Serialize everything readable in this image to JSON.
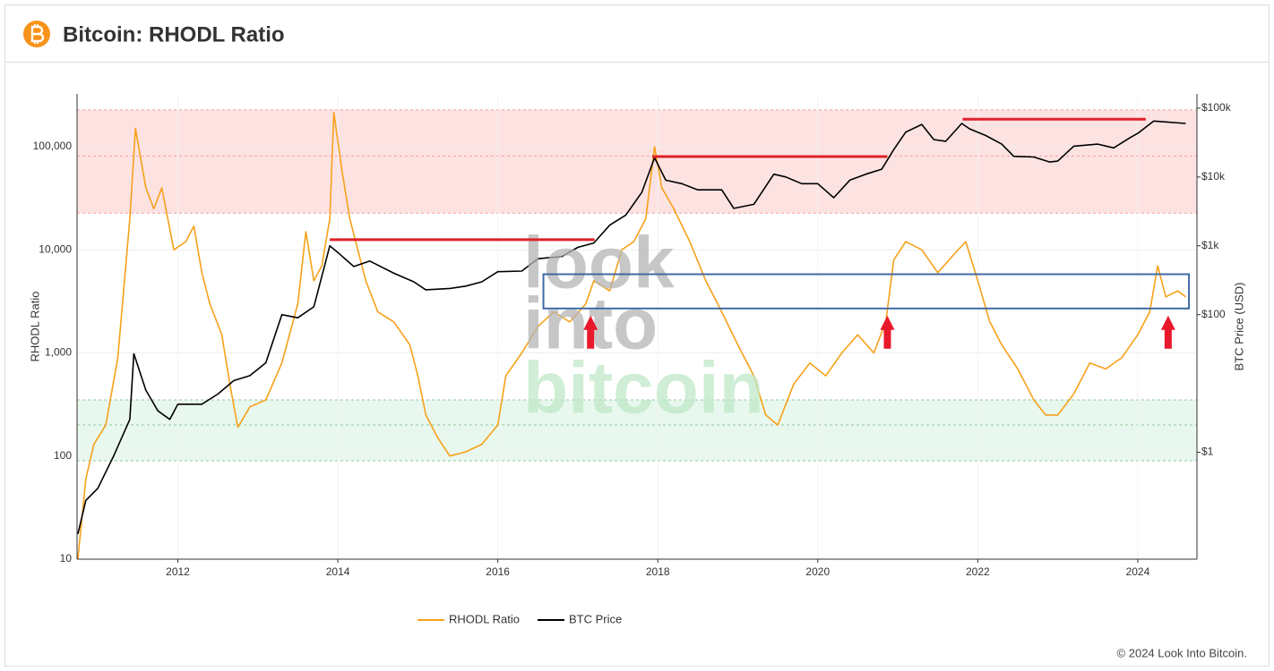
{
  "header": {
    "title": "Bitcoin: RHODL Ratio"
  },
  "chart_data": {
    "type": "line",
    "ylabel": "RHODL Ratio",
    "y2label": "BTC Price (USD)",
    "xlim": [
      2010.74,
      2024.74
    ],
    "xticks": [
      2012,
      2014,
      2016,
      2018,
      2020,
      2022,
      2024
    ],
    "ylim": [
      10,
      325000
    ],
    "log_y": true,
    "yticks": [
      10,
      100,
      {
        "value": 1000,
        "label": "1,000"
      },
      {
        "value": 10000,
        "label": "10,000"
      },
      {
        "value": 100000,
        "label": "100,000"
      }
    ],
    "y2lim": [
      0.028,
      161000
    ],
    "log_y2": true,
    "y2ticks": [
      {
        "value": 1,
        "label": "$1"
      },
      {
        "value": 100,
        "label": "$100"
      },
      {
        "value": 1000,
        "label": "$1k"
      },
      {
        "value": 10000,
        "label": "$10k"
      },
      {
        "value": 100000,
        "label": "$100k"
      }
    ],
    "grid": true,
    "legend": "bottom",
    "bands": [
      {
        "range": [
          22700,
          228000
        ],
        "line": 81000,
        "color": "#fde2e2",
        "line_color": "#f0a0a0"
      },
      {
        "range": [
          90,
          350
        ],
        "line": 200,
        "color": "#e8f8ee",
        "line_color": "#8fc79f"
      }
    ],
    "series": [
      {
        "name": "RHODL Ratio",
        "color": "#f7a11a",
        "x": [
          2010.75,
          2010.85,
          2010.95,
          2011.1,
          2011.25,
          2011.4,
          2011.47,
          2011.6,
          2011.7,
          2011.8,
          2011.95,
          2012.1,
          2012.2,
          2012.3,
          2012.4,
          2012.55,
          2012.65,
          2012.75,
          2012.9,
          2013.1,
          2013.3,
          2013.5,
          2013.6,
          2013.7,
          2013.8,
          2013.9,
          2013.95,
          2014.05,
          2014.15,
          2014.25,
          2014.35,
          2014.5,
          2014.7,
          2014.9,
          2015.0,
          2015.1,
          2015.25,
          2015.4,
          2015.6,
          2015.8,
          2016.0,
          2016.1,
          2016.3,
          2016.5,
          2016.7,
          2016.9,
          2017.1,
          2017.2,
          2017.4,
          2017.55,
          2017.7,
          2017.85,
          2017.96,
          2018.05,
          2018.2,
          2018.4,
          2018.6,
          2018.8,
          2019.0,
          2019.2,
          2019.35,
          2019.5,
          2019.7,
          2019.9,
          2020.1,
          2020.3,
          2020.5,
          2020.7,
          2020.85,
          2020.95,
          2021.1,
          2021.3,
          2021.5,
          2021.7,
          2021.85,
          2022.0,
          2022.15,
          2022.3,
          2022.5,
          2022.7,
          2022.85,
          2023.0,
          2023.2,
          2023.4,
          2023.6,
          2023.8,
          2024.0,
          2024.15,
          2024.25,
          2024.35,
          2024.5,
          2024.6
        ],
        "values": [
          10,
          60,
          130,
          200,
          900,
          20000,
          150000,
          40000,
          25000,
          40000,
          10000,
          12000,
          17000,
          6000,
          3000,
          1500,
          500,
          190,
          300,
          350,
          800,
          3000,
          15000,
          5000,
          7000,
          20000,
          215000,
          60000,
          20000,
          10000,
          5000,
          2500,
          2000,
          1200,
          600,
          250,
          150,
          100,
          110,
          130,
          200,
          600,
          1000,
          1800,
          2500,
          2000,
          3000,
          5000,
          4000,
          10000,
          12000,
          20000,
          100000,
          40000,
          25000,
          12000,
          5000,
          2500,
          1200,
          600,
          250,
          200,
          500,
          800,
          600,
          1000,
          1500,
          1000,
          2000,
          8000,
          12000,
          10000,
          6000,
          9000,
          12000,
          5000,
          2000,
          1200,
          700,
          350,
          250,
          250,
          400,
          800,
          700,
          900,
          1500,
          2500,
          7000,
          3500,
          4000,
          3500
        ]
      },
      {
        "name": "BTC Price",
        "color": "#000000",
        "axis": "y2",
        "x": [
          2010.75,
          2010.85,
          2011.0,
          2011.2,
          2011.4,
          2011.45,
          2011.6,
          2011.75,
          2011.9,
          2012.0,
          2012.3,
          2012.5,
          2012.7,
          2012.9,
          2013.1,
          2013.3,
          2013.5,
          2013.7,
          2013.9,
          2014.0,
          2014.2,
          2014.4,
          2014.7,
          2014.95,
          2015.1,
          2015.4,
          2015.6,
          2015.8,
          2016.0,
          2016.3,
          2016.5,
          2016.8,
          2017.0,
          2017.2,
          2017.4,
          2017.6,
          2017.8,
          2017.96,
          2018.1,
          2018.3,
          2018.5,
          2018.8,
          2018.95,
          2019.2,
          2019.45,
          2019.6,
          2019.8,
          2020.0,
          2020.2,
          2020.4,
          2020.6,
          2020.8,
          2020.95,
          2021.1,
          2021.3,
          2021.45,
          2021.6,
          2021.8,
          2021.9,
          2022.1,
          2022.3,
          2022.45,
          2022.7,
          2022.9,
          2023.0,
          2023.2,
          2023.5,
          2023.7,
          2023.9,
          2024.0,
          2024.2,
          2024.35,
          2024.6
        ],
        "values": [
          0.065,
          0.2,
          0.3,
          0.9,
          3,
          27,
          8,
          4,
          3,
          5,
          5,
          7,
          11,
          13,
          20,
          100,
          90,
          130,
          1000,
          800,
          500,
          600,
          400,
          300,
          230,
          240,
          260,
          300,
          420,
          430,
          650,
          700,
          950,
          1100,
          2000,
          2800,
          6000,
          19000,
          9000,
          8000,
          6500,
          6500,
          3500,
          4000,
          11000,
          10000,
          8000,
          8000,
          5000,
          9000,
          11000,
          13000,
          25000,
          45000,
          58000,
          35000,
          33000,
          60000,
          50000,
          40000,
          30000,
          20000,
          19500,
          16500,
          17000,
          28000,
          30000,
          26500,
          37000,
          43000,
          65000,
          63000,
          60000
        ]
      }
    ],
    "annotations": {
      "ath_lines": [
        {
          "x": [
            2013.9,
            2017.21
          ],
          "y2": 1230
        },
        {
          "x": [
            2017.93,
            2020.87
          ],
          "y2": 19800
        },
        {
          "x": [
            2021.81,
            2024.1
          ],
          "y2": 69000
        }
      ],
      "box": {
        "x": [
          2016.57,
          2024.64
        ],
        "y": [
          2700,
          5800
        ]
      },
      "arrows": [
        2017.16,
        2020.87,
        2024.38
      ]
    },
    "watermark": [
      "look",
      "into",
      "bitcoin"
    ]
  },
  "footer": "© 2024 Look Into Bitcoin."
}
